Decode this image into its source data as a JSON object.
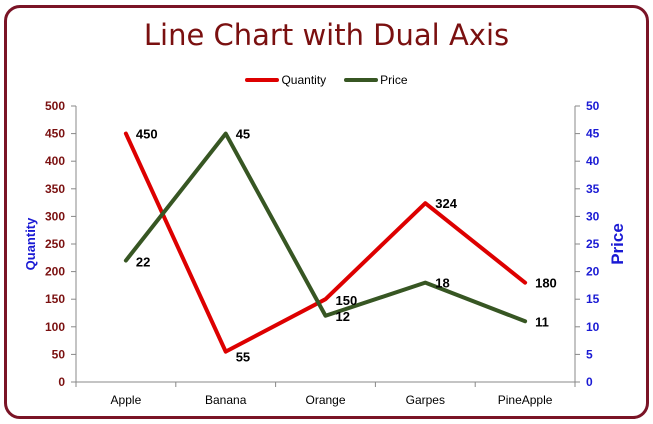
{
  "chart_data": {
    "type": "line",
    "title": "Line Chart with Dual Axis",
    "categories": [
      "Apple",
      "Banana",
      "Orange",
      "Garpes",
      "PineApple"
    ],
    "series": [
      {
        "name": "Quantity",
        "axis": "left",
        "color": "#dd0000",
        "values": [
          450,
          55,
          150,
          324,
          180
        ]
      },
      {
        "name": "Price",
        "axis": "right",
        "color": "#375623",
        "values": [
          22,
          45,
          12,
          18,
          11
        ]
      }
    ],
    "y_left": {
      "label": "Quantity",
      "min": 0,
      "max": 500,
      "step": 50,
      "ticks": [
        "0",
        "50",
        "100",
        "150",
        "200",
        "250",
        "300",
        "350",
        "400",
        "450",
        "500"
      ]
    },
    "y_right": {
      "label": "Price",
      "min": 0,
      "max": 50,
      "step": 5,
      "ticks": [
        "0",
        "5",
        "10",
        "15",
        "20",
        "25",
        "30",
        "35",
        "40",
        "45",
        "50"
      ]
    },
    "legend_position": "top",
    "grid": false
  }
}
